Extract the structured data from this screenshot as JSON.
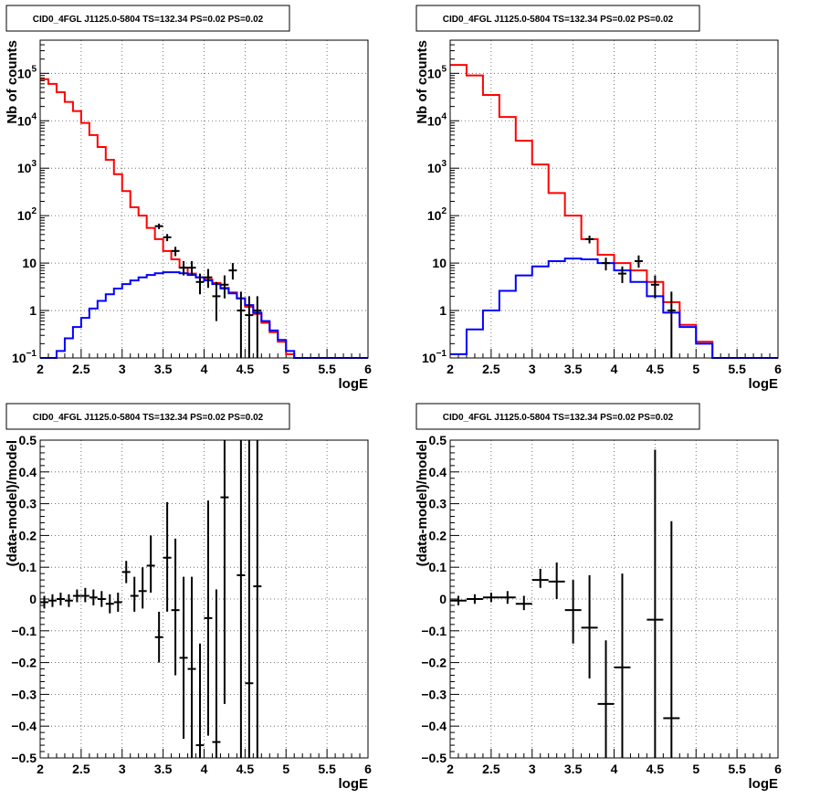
{
  "chart_data": [
    {
      "type": "line",
      "title": "CID0_4FGL J1125.0-5804 TS=132.34 PS=0.02 PS=0.02",
      "xlabel": "logE",
      "ylabel": "Nb of counts",
      "xlim": [
        2,
        6
      ],
      "ylim": [
        0.1,
        500000
      ],
      "yscale": "log",
      "grid": true,
      "x_ticks": [
        "2",
        "2.5",
        "3",
        "3.5",
        "4",
        "4.5",
        "5",
        "5.5",
        "6"
      ],
      "y_ticks": [
        {
          "base": "10",
          "exp": "−1",
          "value": 0.1
        },
        {
          "base": "1",
          "exp": "",
          "value": 1
        },
        {
          "base": "10",
          "exp": "",
          "value": 10
        },
        {
          "base": "10",
          "exp": "2",
          "value": 100
        },
        {
          "base": "10",
          "exp": "3",
          "value": 1000
        },
        {
          "base": "10",
          "exp": "4",
          "value": 10000
        },
        {
          "base": "10",
          "exp": "5",
          "value": 100000
        }
      ],
      "bin_edges": [
        2.0,
        2.1,
        2.2,
        2.3,
        2.4,
        2.5,
        2.6,
        2.7,
        2.8,
        2.9,
        3.0,
        3.1,
        3.2,
        3.3,
        3.4,
        3.5,
        3.6,
        3.7,
        3.8,
        3.9,
        4.0,
        4.1,
        4.2,
        4.3,
        4.4,
        4.5,
        4.6,
        4.7,
        4.8,
        4.9,
        5.0,
        5.1,
        5.2,
        5.3,
        5.4,
        5.5,
        5.6,
        5.7,
        5.8,
        5.9,
        6.0
      ],
      "series": [
        {
          "color": "#ff0000",
          "style": "step",
          "values": [
            75000,
            60000,
            40000,
            25000,
            16000,
            9000,
            5000,
            2800,
            1500,
            750,
            330,
            150,
            100,
            55,
            32,
            18,
            12,
            8,
            6,
            5,
            4.5,
            3.8,
            3.0,
            2.4,
            1.8,
            1.2,
            0.85,
            0.55,
            0.35,
            0.22,
            0.12,
            0.1,
            0.1,
            0.1,
            0.1,
            0.1,
            0.1,
            0.1,
            0.1,
            0.1
          ]
        },
        {
          "color": "#0000ff",
          "style": "step",
          "values": [
            0.1,
            0.1,
            0.14,
            0.26,
            0.45,
            0.7,
            1.1,
            1.6,
            2.2,
            2.9,
            3.6,
            4.3,
            5.0,
            5.6,
            6.1,
            6.4,
            6.4,
            6.1,
            5.6,
            5.0,
            4.3,
            3.6,
            2.9,
            2.3,
            1.8,
            1.3,
            0.9,
            0.6,
            0.38,
            0.24,
            0.14,
            0.1,
            0.1,
            0.1,
            0.1,
            0.1,
            0.1,
            0.1,
            0.1,
            0.1
          ]
        }
      ],
      "points": [
        {
          "x": 3.45,
          "y": 60,
          "lo": 52,
          "hi": 68
        },
        {
          "x": 3.55,
          "y": 35,
          "lo": 29,
          "hi": 41
        },
        {
          "x": 3.65,
          "y": 18,
          "lo": 14,
          "hi": 22
        },
        {
          "x": 3.75,
          "y": 8,
          "lo": 5.5,
          "hi": 11
        },
        {
          "x": 3.85,
          "y": 8,
          "lo": 5.5,
          "hi": 11
        },
        {
          "x": 3.95,
          "y": 4,
          "lo": 2.2,
          "hi": 6
        },
        {
          "x": 4.05,
          "y": 5,
          "lo": 3,
          "hi": 7.5
        },
        {
          "x": 4.15,
          "y": 2,
          "lo": 0.6,
          "hi": 4
        },
        {
          "x": 4.25,
          "y": 3.5,
          "lo": 1.8,
          "hi": 5.5
        },
        {
          "x": 4.35,
          "y": 7,
          "lo": 4.5,
          "hi": 10
        },
        {
          "x": 4.45,
          "y": 1,
          "lo": 0.1,
          "hi": 2.5
        },
        {
          "x": 4.55,
          "y": 0.8,
          "lo": 0.1,
          "hi": 2
        },
        {
          "x": 4.65,
          "y": 1,
          "lo": 0.1,
          "hi": 2
        }
      ]
    },
    {
      "type": "line",
      "title": "CID0_4FGL J1125.0-5804 TS=132.34 PS=0.02 PS=0.02",
      "xlabel": "logE",
      "ylabel": "Nb of counts",
      "xlim": [
        2,
        6
      ],
      "ylim": [
        0.1,
        500000
      ],
      "yscale": "log",
      "grid": true,
      "x_ticks": [
        "2",
        "2.5",
        "3",
        "3.5",
        "4",
        "4.5",
        "5",
        "5.5",
        "6"
      ],
      "y_ticks": [
        {
          "base": "10",
          "exp": "−1",
          "value": 0.1
        },
        {
          "base": "1",
          "exp": "",
          "value": 1
        },
        {
          "base": "10",
          "exp": "",
          "value": 10
        },
        {
          "base": "10",
          "exp": "2",
          "value": 100
        },
        {
          "base": "10",
          "exp": "3",
          "value": 1000
        },
        {
          "base": "10",
          "exp": "4",
          "value": 10000
        },
        {
          "base": "10",
          "exp": "5",
          "value": 100000
        }
      ],
      "bin_edges": [
        2.0,
        2.2,
        2.4,
        2.6,
        2.8,
        3.0,
        3.2,
        3.4,
        3.6,
        3.8,
        4.0,
        4.2,
        4.4,
        4.6,
        4.8,
        5.0,
        5.2,
        5.4,
        5.6,
        5.8,
        6.0
      ],
      "series": [
        {
          "color": "#ff0000",
          "style": "step",
          "values": [
            150000,
            90000,
            35000,
            12000,
            3800,
            1200,
            300,
            100,
            32,
            15,
            10,
            7,
            4,
            1.5,
            0.5,
            0.22,
            0.1,
            0.1,
            0.1,
            0.1
          ]
        },
        {
          "color": "#0000ff",
          "style": "step",
          "values": [
            0.12,
            0.4,
            1.0,
            2.6,
            5.5,
            8.5,
            11,
            12.5,
            12,
            10,
            7,
            4,
            2,
            0.9,
            0.45,
            0.2,
            0.1,
            0.1,
            0.1,
            0.1
          ]
        }
      ],
      "points": [
        {
          "x": 3.7,
          "y": 32,
          "lo": 26,
          "hi": 38
        },
        {
          "x": 3.9,
          "y": 10,
          "lo": 7,
          "hi": 13
        },
        {
          "x": 4.1,
          "y": 6,
          "lo": 3.8,
          "hi": 8.5
        },
        {
          "x": 4.3,
          "y": 11,
          "lo": 8,
          "hi": 14.5
        },
        {
          "x": 4.5,
          "y": 3.5,
          "lo": 1.8,
          "hi": 5.5
        },
        {
          "x": 4.7,
          "y": 1,
          "lo": 0.1,
          "hi": 2.5
        }
      ]
    },
    {
      "type": "scatter",
      "title": "CID0_4FGL J1125.0-5804 TS=132.34 PS=0.02 PS=0.02",
      "xlabel": "logE",
      "ylabel": "(data-model)/model",
      "xlim": [
        2,
        6
      ],
      "ylim": [
        -0.5,
        0.5
      ],
      "yscale": "linear",
      "grid": true,
      "x_ticks": [
        "2",
        "2.5",
        "3",
        "3.5",
        "4",
        "4.5",
        "5",
        "5.5",
        "6"
      ],
      "y_ticks": [
        {
          "base": "0.5",
          "exp": "",
          "value": 0.5
        },
        {
          "base": "0.4",
          "exp": "",
          "value": 0.4
        },
        {
          "base": "0.3",
          "exp": "",
          "value": 0.3
        },
        {
          "base": "0.2",
          "exp": "",
          "value": 0.2
        },
        {
          "base": "0.1",
          "exp": "",
          "value": 0.1
        },
        {
          "base": "0",
          "exp": "",
          "value": 0
        },
        {
          "base": "−0.1",
          "exp": "",
          "value": -0.1
        },
        {
          "base": "−0.2",
          "exp": "",
          "value": -0.2
        },
        {
          "base": "−0.3",
          "exp": "",
          "value": -0.3
        },
        {
          "base": "−0.4",
          "exp": "",
          "value": -0.4
        },
        {
          "base": "−0.5",
          "exp": "",
          "value": -0.5
        }
      ],
      "x_half_width": 0.05,
      "points": [
        {
          "x": 2.05,
          "y": -0.01,
          "lo": -0.03,
          "hi": 0.01
        },
        {
          "x": 2.15,
          "y": -0.005,
          "lo": -0.025,
          "hi": 0.015
        },
        {
          "x": 2.25,
          "y": 0.0,
          "lo": -0.02,
          "hi": 0.02
        },
        {
          "x": 2.35,
          "y": -0.005,
          "lo": -0.025,
          "hi": 0.015
        },
        {
          "x": 2.45,
          "y": 0.01,
          "lo": -0.01,
          "hi": 0.03
        },
        {
          "x": 2.55,
          "y": 0.01,
          "lo": -0.01,
          "hi": 0.035
        },
        {
          "x": 2.65,
          "y": 0.005,
          "lo": -0.02,
          "hi": 0.03
        },
        {
          "x": 2.75,
          "y": 0.0,
          "lo": -0.025,
          "hi": 0.025
        },
        {
          "x": 2.85,
          "y": -0.015,
          "lo": -0.045,
          "hi": 0.015
        },
        {
          "x": 2.95,
          "y": -0.01,
          "lo": -0.04,
          "hi": 0.02
        },
        {
          "x": 3.05,
          "y": 0.085,
          "lo": 0.05,
          "hi": 0.12
        },
        {
          "x": 3.15,
          "y": 0.01,
          "lo": -0.04,
          "hi": 0.07
        },
        {
          "x": 3.25,
          "y": 0.025,
          "lo": -0.03,
          "hi": 0.1
        },
        {
          "x": 3.35,
          "y": 0.105,
          "lo": 0.02,
          "hi": 0.2
        },
        {
          "x": 3.45,
          "y": -0.12,
          "lo": -0.2,
          "hi": -0.04
        },
        {
          "x": 3.55,
          "y": 0.13,
          "lo": -0.04,
          "hi": 0.305
        },
        {
          "x": 3.65,
          "y": -0.035,
          "lo": -0.24,
          "hi": 0.19
        },
        {
          "x": 3.75,
          "y": -0.185,
          "lo": -0.44,
          "hi": 0.07
        },
        {
          "x": 3.85,
          "y": -0.22,
          "lo": -0.5,
          "hi": 0.07
        },
        {
          "x": 3.95,
          "y": -0.46,
          "lo": -0.5,
          "hi": -0.14
        },
        {
          "x": 4.05,
          "y": -0.06,
          "lo": -0.43,
          "hi": 0.31
        },
        {
          "x": 4.15,
          "y": -0.45,
          "lo": -0.5,
          "hi": 0.03
        },
        {
          "x": 4.25,
          "y": 0.32,
          "lo": -0.33,
          "hi": 0.5
        },
        {
          "x": 4.45,
          "y": 0.075,
          "lo": -0.5,
          "hi": 0.5
        },
        {
          "x": 4.55,
          "y": -0.265,
          "lo": -0.5,
          "hi": 0.5
        },
        {
          "x": 4.65,
          "y": 0.04,
          "lo": -0.5,
          "hi": 0.5
        }
      ]
    },
    {
      "type": "scatter",
      "title": "CID0_4FGL J1125.0-5804 TS=132.34 PS=0.02 PS=0.02",
      "xlabel": "logE",
      "ylabel": "(data-model)/model",
      "xlim": [
        2,
        6
      ],
      "ylim": [
        -0.5,
        0.5
      ],
      "yscale": "linear",
      "grid": true,
      "x_ticks": [
        "2",
        "2.5",
        "3",
        "3.5",
        "4",
        "4.5",
        "5",
        "5.5",
        "6"
      ],
      "y_ticks": [
        {
          "base": "0.5",
          "exp": "",
          "value": 0.5
        },
        {
          "base": "0.4",
          "exp": "",
          "value": 0.4
        },
        {
          "base": "0.3",
          "exp": "",
          "value": 0.3
        },
        {
          "base": "0.2",
          "exp": "",
          "value": 0.2
        },
        {
          "base": "0.1",
          "exp": "",
          "value": 0.1
        },
        {
          "base": "0",
          "exp": "",
          "value": 0
        },
        {
          "base": "−0.1",
          "exp": "",
          "value": -0.1
        },
        {
          "base": "−0.2",
          "exp": "",
          "value": -0.2
        },
        {
          "base": "−0.3",
          "exp": "",
          "value": -0.3
        },
        {
          "base": "−0.4",
          "exp": "",
          "value": -0.4
        },
        {
          "base": "−0.5",
          "exp": "",
          "value": -0.5
        }
      ],
      "x_half_width": 0.1,
      "points": [
        {
          "x": 2.1,
          "y": -0.005,
          "lo": -0.02,
          "hi": 0.01
        },
        {
          "x": 2.3,
          "y": 0.0,
          "lo": -0.015,
          "hi": 0.015
        },
        {
          "x": 2.5,
          "y": 0.005,
          "lo": -0.01,
          "hi": 0.02
        },
        {
          "x": 2.7,
          "y": 0.005,
          "lo": -0.015,
          "hi": 0.025
        },
        {
          "x": 2.9,
          "y": -0.015,
          "lo": -0.035,
          "hi": 0.01
        },
        {
          "x": 3.1,
          "y": 0.06,
          "lo": 0.035,
          "hi": 0.095
        },
        {
          "x": 3.3,
          "y": 0.055,
          "lo": 0.0,
          "hi": 0.115
        },
        {
          "x": 3.5,
          "y": -0.035,
          "lo": -0.14,
          "hi": 0.06
        },
        {
          "x": 3.7,
          "y": -0.09,
          "lo": -0.25,
          "hi": 0.075
        },
        {
          "x": 3.9,
          "y": -0.33,
          "lo": -0.5,
          "hi": -0.13
        },
        {
          "x": 4.1,
          "y": -0.215,
          "lo": -0.5,
          "hi": 0.08
        },
        {
          "x": 4.5,
          "y": -0.065,
          "lo": -0.5,
          "hi": 0.47
        },
        {
          "x": 4.7,
          "y": -0.375,
          "lo": -0.5,
          "hi": 0.245
        }
      ]
    }
  ]
}
